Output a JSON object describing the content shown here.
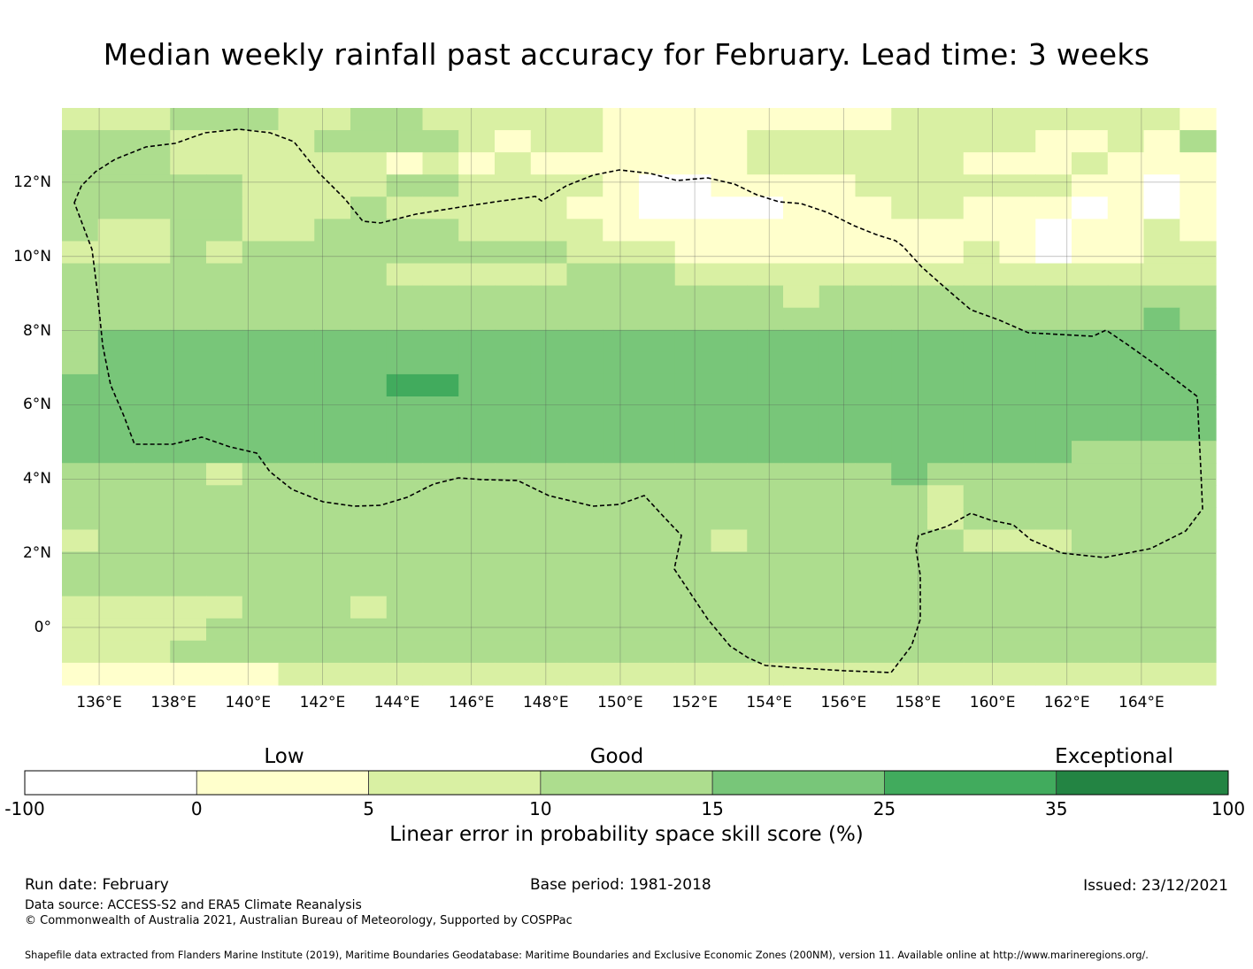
{
  "title": "Median weekly rainfall past accuracy for February. Lead time: 3 weeks",
  "map": {
    "lon_labels": [
      "136°E",
      "138°E",
      "140°E",
      "142°E",
      "144°E",
      "146°E",
      "148°E",
      "150°E",
      "152°E",
      "154°E",
      "156°E",
      "158°E",
      "160°E",
      "162°E",
      "164°E"
    ],
    "lat_labels": [
      "12°N",
      "10°N",
      "8°N",
      "6°N",
      "4°N",
      "2°N",
      "0°"
    ],
    "extent": {
      "lon_min": 135.0,
      "lon_max": 166.0,
      "lat_min": -1.55,
      "lat_max": 14.0
    },
    "grid_cell_deg": 0.833,
    "skill_grid_classes": [
      "22233322332222211111111222222221",
      "33322223333212211112222222211213",
      "33322222212121111112222221112111",
      "33333222233222210011112222221101",
      "33333222322222110000111221110101",
      "32233223333222211111111111101121",
      "22232333333333222111111112101122",
      "33333333322222333222222222222222",
      "33333333333333333333233333333333",
      "33333333333333333333333333333343",
      "34444444444444444444444444444444",
      "34444444444444444444444444444444",
      "44444444455444444444444444444444",
      "44444444444444444444444444444444",
      "44444444444444444444444444444444",
      "44444444444444444444444444443333",
      "33332333333333333333333433333333",
      "33333333333333333333333323333333",
      "33333333333333333333333323333333",
      "23333333333333333323333332223333",
      "33333333333333333333333333333333",
      "33333333333333333333333333333333",
      "22222333233333333333333333333333",
      "22223333333333333333333333333333",
      "22233333333333333333333333333333",
      "11111122222222222222222222222222"
    ],
    "boundary_style": "dashed",
    "colors": [
      "#ffffff",
      "#ffffcc",
      "#d9f0a3",
      "#addd8e",
      "#78c679",
      "#41ab5d",
      "#238443"
    ]
  },
  "colorbar": {
    "category_labels": [
      "Low",
      "Good",
      "Exceptional"
    ],
    "boundaries": [
      "-100",
      "0",
      "5",
      "10",
      "15",
      "25",
      "35",
      "100"
    ],
    "colors": [
      "#ffffff",
      "#ffffcc",
      "#d9f0a3",
      "#addd8e",
      "#78c679",
      "#41ab5d",
      "#238443"
    ],
    "title": "Linear error in probability space skill score (%)"
  },
  "footer": {
    "run_date": "Run date: February",
    "base_period": "Base period: 1981-2018",
    "issued": "Issued: 23/12/2021",
    "data_source": "Data source: ACCESS-S2 and ERA5 Climate Reanalysis",
    "copyright": "© Commonwealth of Australia 2021, Australian Bureau of Meteorology, Supported by COSPPac",
    "shapefile_note": "Shapefile data extracted from Flanders Marine Institute (2019), Maritime Boundaries Geodatabase: Maritime Boundaries and Exclusive Economic Zones (200NM), version 11. Available online at http://www.marineregions.org/."
  }
}
